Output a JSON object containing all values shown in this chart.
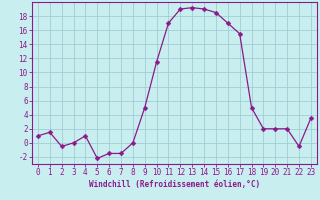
{
  "x": [
    0,
    1,
    2,
    3,
    4,
    5,
    6,
    7,
    8,
    9,
    10,
    11,
    12,
    13,
    14,
    15,
    16,
    17,
    18,
    19,
    20,
    21,
    22,
    23
  ],
  "y": [
    1,
    1.5,
    -0.5,
    0,
    1,
    -2.2,
    -1.5,
    -1.5,
    0,
    5,
    11.5,
    17,
    19,
    19.2,
    19,
    18.5,
    17,
    15.5,
    5,
    2,
    2,
    2,
    -0.5,
    3.5
  ],
  "line_color": "#8b1a8b",
  "marker_color": "#8b1a8b",
  "bg_color": "#c8eef0",
  "grid_color": "#a0cdd4",
  "xlabel": "Windchill (Refroidissement éolien,°C)",
  "xlabel_color": "#8b1a8b",
  "tick_color": "#8b1a8b",
  "spine_color": "#8b1a8b",
  "ylim": [
    -3,
    20
  ],
  "yticks": [
    -2,
    0,
    2,
    4,
    6,
    8,
    10,
    12,
    14,
    16,
    18
  ],
  "xticks": [
    0,
    1,
    2,
    3,
    4,
    5,
    6,
    7,
    8,
    9,
    10,
    11,
    12,
    13,
    14,
    15,
    16,
    17,
    18,
    19,
    20,
    21,
    22,
    23
  ],
  "marker_size": 2.5,
  "tick_fontsize": 5.5,
  "xlabel_fontsize": 5.5
}
